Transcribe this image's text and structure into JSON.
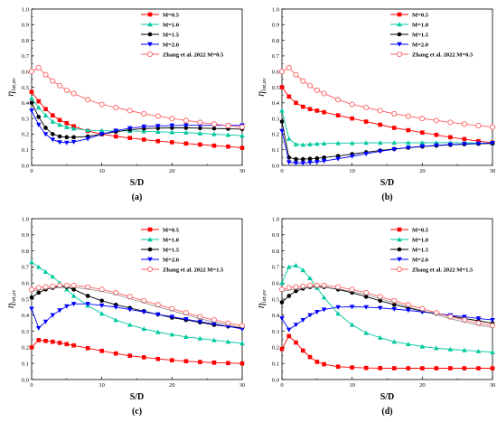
{
  "figure": {
    "y_title_main": "η",
    "y_title_sub": "lat,av"
  },
  "chart_data": [
    {
      "type": "line",
      "panel_label": "(a)",
      "xlabel": "S/D",
      "xlim": [
        0,
        30
      ],
      "ylim": [
        0,
        1.0
      ],
      "xticks": [
        "0",
        "10",
        "20",
        "30"
      ],
      "yticks": [
        "0.0",
        "0.1",
        "0.2",
        "0.3",
        "0.4",
        "0.5",
        "0.6",
        "0.7",
        "0.8",
        "0.9",
        "1.0"
      ],
      "legend_position": "top-right",
      "series": [
        {
          "name": "M=0.5",
          "color": "#ff0000",
          "marker": "square",
          "x": [
            0,
            1,
            2,
            3,
            4,
            5,
            6,
            8,
            10,
            12,
            14,
            16,
            18,
            20,
            22,
            24,
            26,
            28,
            30
          ],
          "y": [
            0.47,
            0.41,
            0.36,
            0.32,
            0.29,
            0.27,
            0.25,
            0.22,
            0.2,
            0.185,
            0.175,
            0.165,
            0.155,
            0.148,
            0.14,
            0.133,
            0.126,
            0.12,
            0.112
          ]
        },
        {
          "name": "M=1.0",
          "color": "#00c8a0",
          "marker": "triangle-up",
          "x": [
            0,
            1,
            2,
            3,
            4,
            5,
            6,
            8,
            10,
            12,
            14,
            16,
            18,
            20,
            22,
            24,
            26,
            28,
            30
          ],
          "y": [
            0.43,
            0.37,
            0.32,
            0.28,
            0.26,
            0.245,
            0.235,
            0.225,
            0.222,
            0.22,
            0.22,
            0.218,
            0.215,
            0.212,
            0.21,
            0.205,
            0.2,
            0.195,
            0.19
          ]
        },
        {
          "name": "M=1.5",
          "color": "#000000",
          "marker": "circle",
          "x": [
            0,
            1,
            2,
            3,
            4,
            5,
            6,
            8,
            10,
            12,
            14,
            16,
            18,
            20,
            22,
            24,
            26,
            28,
            30
          ],
          "y": [
            0.4,
            0.31,
            0.24,
            0.2,
            0.185,
            0.18,
            0.18,
            0.185,
            0.2,
            0.215,
            0.228,
            0.235,
            0.238,
            0.24,
            0.24,
            0.238,
            0.236,
            0.234,
            0.232
          ]
        },
        {
          "name": "M=2.0",
          "color": "#0000ff",
          "marker": "triangle-down",
          "x": [
            0,
            1,
            2,
            3,
            4,
            5,
            6,
            8,
            10,
            12,
            14,
            16,
            18,
            20,
            22,
            24,
            26,
            28,
            30
          ],
          "y": [
            0.35,
            0.26,
            0.2,
            0.165,
            0.148,
            0.145,
            0.15,
            0.17,
            0.2,
            0.222,
            0.238,
            0.248,
            0.252,
            0.255,
            0.256,
            0.256,
            0.256,
            0.256,
            0.256
          ]
        },
        {
          "name": "Zhang et al. 2022 M=0.5",
          "color": "#ff6060",
          "marker": "open-circle",
          "x": [
            0,
            1,
            2,
            3,
            4,
            5,
            6,
            8,
            10,
            12,
            14,
            16,
            18,
            20,
            22,
            24,
            26,
            28,
            30
          ],
          "y": [
            0.6,
            0.625,
            0.58,
            0.54,
            0.51,
            0.48,
            0.46,
            0.42,
            0.39,
            0.37,
            0.35,
            0.33,
            0.315,
            0.3,
            0.287,
            0.275,
            0.264,
            0.254,
            0.245
          ]
        }
      ]
    },
    {
      "type": "line",
      "panel_label": "(b)",
      "xlabel": "S/D",
      "xlim": [
        0,
        30
      ],
      "ylim": [
        0,
        1.0
      ],
      "xticks": [
        "0",
        "10",
        "20",
        "30"
      ],
      "yticks": [
        "0.0",
        "0.1",
        "0.2",
        "0.3",
        "0.4",
        "0.5",
        "0.6",
        "0.7",
        "0.8",
        "0.9",
        "1.0"
      ],
      "legend_position": "top-right",
      "series": [
        {
          "name": "M=0.5",
          "color": "#ff0000",
          "marker": "square",
          "x": [
            0,
            1,
            2,
            3,
            4,
            5,
            6,
            8,
            10,
            12,
            14,
            16,
            18,
            20,
            22,
            24,
            26,
            28,
            30
          ],
          "y": [
            0.5,
            0.44,
            0.4,
            0.375,
            0.36,
            0.35,
            0.34,
            0.32,
            0.3,
            0.28,
            0.26,
            0.24,
            0.225,
            0.21,
            0.195,
            0.18,
            0.168,
            0.155,
            0.145
          ]
        },
        {
          "name": "M=1.0",
          "color": "#00c8a0",
          "marker": "triangle-up",
          "x": [
            0,
            1,
            2,
            3,
            4,
            5,
            6,
            8,
            10,
            12,
            14,
            16,
            18,
            20,
            22,
            24,
            26,
            28,
            30
          ],
          "y": [
            0.35,
            0.17,
            0.135,
            0.132,
            0.135,
            0.138,
            0.14,
            0.142,
            0.143,
            0.144,
            0.145,
            0.145,
            0.145,
            0.145,
            0.145,
            0.145,
            0.144,
            0.143,
            0.142
          ]
        },
        {
          "name": "M=1.5",
          "color": "#000000",
          "marker": "circle",
          "x": [
            0,
            1,
            2,
            3,
            4,
            5,
            6,
            8,
            10,
            12,
            14,
            16,
            18,
            20,
            22,
            24,
            26,
            28,
            30
          ],
          "y": [
            0.28,
            0.05,
            0.04,
            0.04,
            0.042,
            0.045,
            0.05,
            0.06,
            0.072,
            0.084,
            0.095,
            0.105,
            0.113,
            0.12,
            0.126,
            0.131,
            0.135,
            0.138,
            0.14
          ]
        },
        {
          "name": "M=2.0",
          "color": "#0000ff",
          "marker": "triangle-down",
          "x": [
            0,
            1,
            2,
            3,
            4,
            5,
            6,
            8,
            10,
            12,
            14,
            16,
            18,
            20,
            22,
            24,
            26,
            28,
            30
          ],
          "y": [
            0.22,
            0.02,
            0.015,
            0.015,
            0.018,
            0.022,
            0.028,
            0.042,
            0.058,
            0.074,
            0.09,
            0.103,
            0.114,
            0.122,
            0.128,
            0.133,
            0.137,
            0.14,
            0.143
          ]
        },
        {
          "name": "Zhang et al. 2022 M=0.5",
          "color": "#ff6060",
          "marker": "open-circle",
          "x": [
            0,
            1,
            2,
            3,
            4,
            5,
            6,
            8,
            10,
            12,
            14,
            16,
            18,
            20,
            22,
            24,
            26,
            28,
            30
          ],
          "y": [
            0.6,
            0.625,
            0.58,
            0.54,
            0.51,
            0.48,
            0.46,
            0.42,
            0.39,
            0.37,
            0.35,
            0.33,
            0.315,
            0.3,
            0.287,
            0.275,
            0.264,
            0.254,
            0.245
          ]
        }
      ]
    },
    {
      "type": "line",
      "panel_label": "(c)",
      "xlabel": "S/D",
      "xlim": [
        0,
        30
      ],
      "ylim": [
        0,
        1.0
      ],
      "xticks": [
        "0",
        "10",
        "20",
        "30"
      ],
      "yticks": [
        "0.0",
        "0.1",
        "0.2",
        "0.3",
        "0.4",
        "0.5",
        "0.6",
        "0.7",
        "0.8",
        "0.9",
        "1.0"
      ],
      "legend_position": "top-right",
      "series": [
        {
          "name": "M=0.5",
          "color": "#ff0000",
          "marker": "square",
          "x": [
            0,
            1,
            2,
            3,
            4,
            5,
            6,
            8,
            10,
            12,
            14,
            16,
            18,
            20,
            22,
            24,
            26,
            28,
            30
          ],
          "y": [
            0.2,
            0.245,
            0.24,
            0.235,
            0.228,
            0.22,
            0.212,
            0.195,
            0.178,
            0.162,
            0.148,
            0.138,
            0.128,
            0.12,
            0.114,
            0.109,
            0.105,
            0.102,
            0.1
          ]
        },
        {
          "name": "M=1.0",
          "color": "#00c8a0",
          "marker": "triangle-up",
          "x": [
            0,
            1,
            2,
            3,
            4,
            5,
            6,
            8,
            10,
            12,
            14,
            16,
            18,
            20,
            22,
            24,
            26,
            28,
            30
          ],
          "y": [
            0.73,
            0.7,
            0.67,
            0.64,
            0.6,
            0.56,
            0.52,
            0.46,
            0.41,
            0.37,
            0.34,
            0.315,
            0.295,
            0.28,
            0.265,
            0.255,
            0.245,
            0.235,
            0.225
          ]
        },
        {
          "name": "M=1.5",
          "color": "#000000",
          "marker": "circle",
          "x": [
            0,
            1,
            2,
            3,
            4,
            5,
            6,
            8,
            10,
            12,
            14,
            16,
            18,
            20,
            22,
            24,
            26,
            28,
            30
          ],
          "y": [
            0.51,
            0.54,
            0.56,
            0.57,
            0.58,
            0.575,
            0.56,
            0.52,
            0.49,
            0.465,
            0.445,
            0.425,
            0.405,
            0.385,
            0.37,
            0.355,
            0.34,
            0.33,
            0.32
          ]
        },
        {
          "name": "M=2.0",
          "color": "#0000ff",
          "marker": "triangle-down",
          "x": [
            0,
            1,
            2,
            3,
            4,
            5,
            6,
            8,
            10,
            12,
            14,
            16,
            18,
            20,
            22,
            24,
            26,
            28,
            30
          ],
          "y": [
            0.44,
            0.32,
            0.36,
            0.4,
            0.43,
            0.455,
            0.47,
            0.47,
            0.46,
            0.45,
            0.435,
            0.42,
            0.405,
            0.39,
            0.375,
            0.36,
            0.345,
            0.33,
            0.315
          ]
        },
        {
          "name": "Zhang et al. 2022 M=1.5",
          "color": "#ff6060",
          "marker": "open-circle",
          "x": [
            0,
            1,
            2,
            3,
            4,
            5,
            6,
            8,
            10,
            12,
            14,
            16,
            18,
            20,
            22,
            24,
            26,
            28,
            30
          ],
          "y": [
            0.56,
            0.57,
            0.575,
            0.58,
            0.585,
            0.585,
            0.585,
            0.575,
            0.56,
            0.54,
            0.515,
            0.49,
            0.465,
            0.44,
            0.415,
            0.39,
            0.37,
            0.35,
            0.335
          ]
        }
      ]
    },
    {
      "type": "line",
      "panel_label": "(d)",
      "xlabel": "S/D",
      "xlim": [
        0,
        30
      ],
      "ylim": [
        0,
        1.0
      ],
      "xticks": [
        "0",
        "10",
        "20",
        "30"
      ],
      "yticks": [
        "0.0",
        "0.1",
        "0.2",
        "0.3",
        "0.4",
        "0.5",
        "0.6",
        "0.7",
        "0.8",
        "0.9",
        "1.0"
      ],
      "legend_position": "top-right",
      "series": [
        {
          "name": "M=0.5",
          "color": "#ff0000",
          "marker": "square",
          "x": [
            0,
            1,
            2,
            3,
            4,
            5,
            6,
            8,
            10,
            12,
            14,
            16,
            18,
            20,
            22,
            24,
            26,
            28,
            30
          ],
          "y": [
            0.19,
            0.27,
            0.23,
            0.18,
            0.14,
            0.11,
            0.095,
            0.08,
            0.075,
            0.072,
            0.071,
            0.07,
            0.07,
            0.07,
            0.07,
            0.07,
            0.07,
            0.07,
            0.07
          ]
        },
        {
          "name": "M=1.0",
          "color": "#00c8a0",
          "marker": "triangle-up",
          "x": [
            0,
            1,
            2,
            3,
            4,
            5,
            6,
            8,
            10,
            12,
            14,
            16,
            18,
            20,
            22,
            24,
            26,
            28,
            30
          ],
          "y": [
            0.6,
            0.7,
            0.71,
            0.68,
            0.63,
            0.57,
            0.51,
            0.41,
            0.34,
            0.29,
            0.26,
            0.235,
            0.22,
            0.205,
            0.195,
            0.188,
            0.182,
            0.176,
            0.17
          ]
        },
        {
          "name": "M=1.5",
          "color": "#000000",
          "marker": "circle",
          "x": [
            0,
            1,
            2,
            3,
            4,
            5,
            6,
            8,
            10,
            12,
            14,
            16,
            18,
            20,
            22,
            24,
            26,
            28,
            30
          ],
          "y": [
            0.48,
            0.52,
            0.55,
            0.565,
            0.575,
            0.58,
            0.575,
            0.56,
            0.54,
            0.515,
            0.49,
            0.465,
            0.445,
            0.425,
            0.41,
            0.395,
            0.38,
            0.365,
            0.35
          ]
        },
        {
          "name": "M=2.0",
          "color": "#0000ff",
          "marker": "triangle-down",
          "x": [
            0,
            1,
            2,
            3,
            4,
            5,
            6,
            8,
            10,
            12,
            14,
            16,
            18,
            20,
            22,
            24,
            26,
            28,
            30
          ],
          "y": [
            0.38,
            0.31,
            0.34,
            0.37,
            0.4,
            0.42,
            0.435,
            0.45,
            0.452,
            0.45,
            0.445,
            0.438,
            0.43,
            0.42,
            0.41,
            0.4,
            0.39,
            0.38,
            0.37
          ]
        },
        {
          "name": "Zhang et al. 2022 M=1.5",
          "color": "#ff6060",
          "marker": "open-circle",
          "x": [
            0,
            1,
            2,
            3,
            4,
            5,
            6,
            8,
            10,
            12,
            14,
            16,
            18,
            20,
            22,
            24,
            26,
            28,
            30
          ],
          "y": [
            0.56,
            0.57,
            0.575,
            0.58,
            0.585,
            0.585,
            0.585,
            0.575,
            0.56,
            0.54,
            0.515,
            0.49,
            0.465,
            0.44,
            0.415,
            0.39,
            0.37,
            0.35,
            0.335
          ]
        }
      ]
    }
  ]
}
